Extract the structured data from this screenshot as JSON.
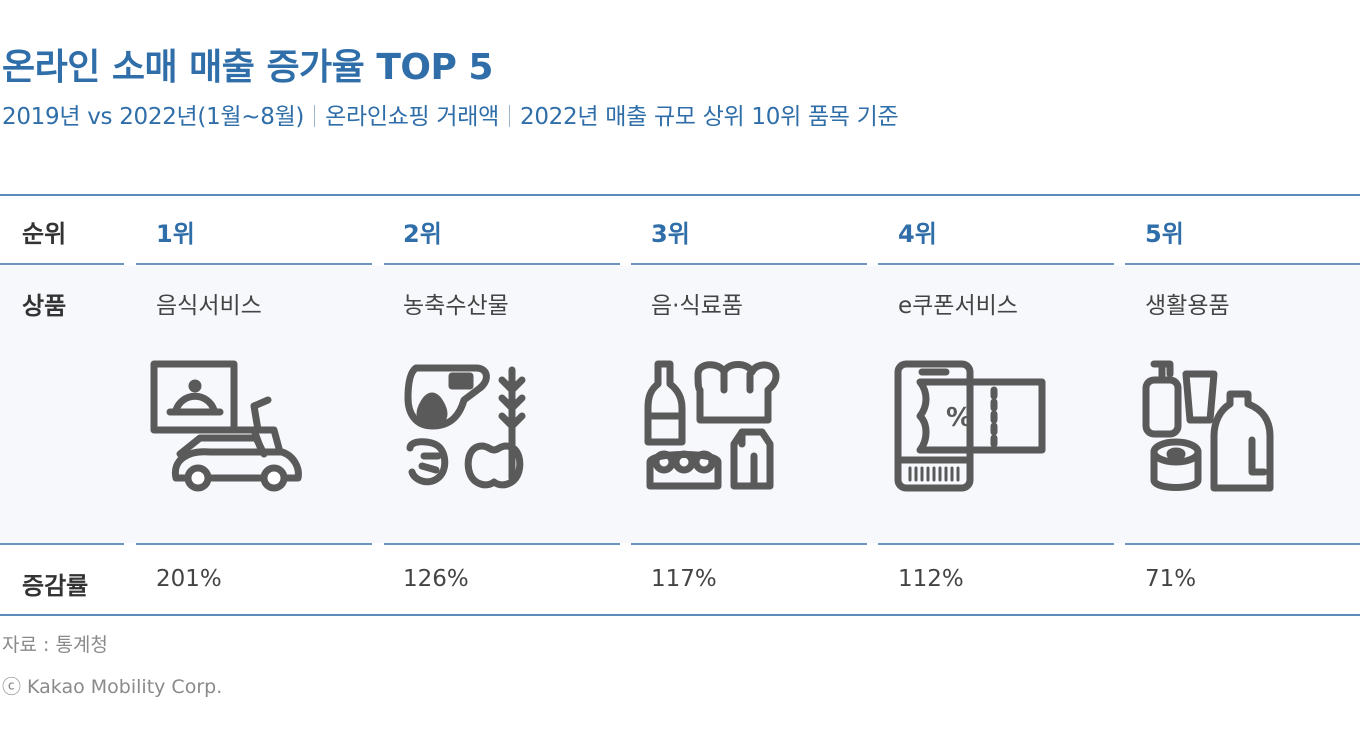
{
  "title": "온라인 소매 매출 증가율 TOP 5",
  "subtitle": {
    "part1": "2019년 vs 2022년(1월~8월)",
    "part2": "온라인쇼핑 거래액",
    "part3": "2022년 매출 규모 상위 10위 품목 기준"
  },
  "table": {
    "row_labels": {
      "rank": "순위",
      "product": "상품",
      "growth": "증감률"
    },
    "columns": [
      {
        "rank": "1위",
        "product": "음식서비스",
        "icon": "food-delivery-icon",
        "growth": "201%"
      },
      {
        "rank": "2위",
        "product": "농축수산물",
        "icon": "farm-produce-icon",
        "growth": "126%"
      },
      {
        "rank": "3위",
        "product": "음·식료품",
        "icon": "groceries-icon",
        "growth": "117%"
      },
      {
        "rank": "4위",
        "product": "e쿠폰서비스",
        "icon": "mobile-coupon-icon",
        "growth": "112%"
      },
      {
        "rank": "5위",
        "product": "생활용품",
        "icon": "household-goods-icon",
        "growth": "71%"
      }
    ]
  },
  "footer": {
    "source": "자료 : 통계청",
    "copyright": "ⓒ Kakao Mobility Corp."
  },
  "colors": {
    "accent": "#2f6ea8",
    "icon": "#5a5a5a",
    "band": "#f6f8fb"
  }
}
